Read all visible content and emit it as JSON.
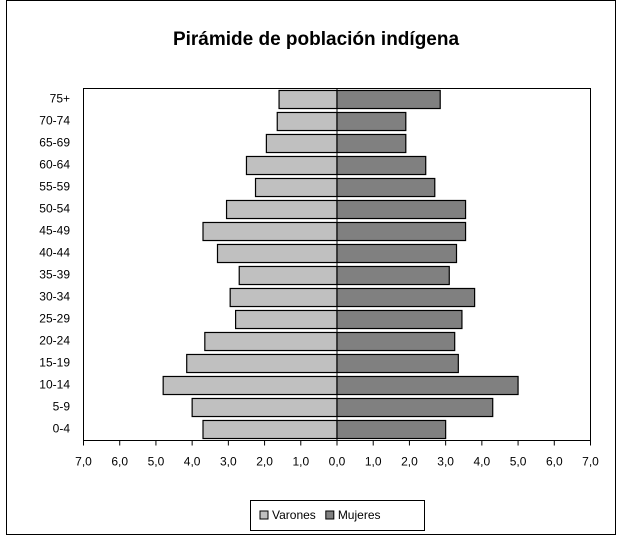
{
  "chart_data": {
    "type": "pyramid",
    "title": "Pirámide de población indígena",
    "categories": [
      "0-4",
      "5-9",
      "10-14",
      "15-19",
      "20-24",
      "25-29",
      "30-34",
      "35-39",
      "40-44",
      "45-49",
      "50-54",
      "55-59",
      "60-64",
      "65-69",
      "70-74",
      "75+"
    ],
    "series": [
      {
        "name": "Varones",
        "color": "#c0c0c0",
        "values": [
          -3.7,
          -4.0,
          -4.8,
          -4.15,
          -3.65,
          -2.8,
          -2.95,
          -2.7,
          -3.3,
          -3.7,
          -3.05,
          -2.25,
          -2.5,
          -1.95,
          -1.65,
          -1.6
        ]
      },
      {
        "name": "Mujeres",
        "color": "#808080",
        "values": [
          3.0,
          4.3,
          5.0,
          3.35,
          3.25,
          3.45,
          3.8,
          3.1,
          3.3,
          3.55,
          3.55,
          2.7,
          2.45,
          1.9,
          1.9,
          2.85
        ]
      }
    ],
    "xlim": [
      -7,
      7
    ],
    "xticks": [
      {
        "value": -7,
        "label": "7,0"
      },
      {
        "value": -6,
        "label": "6,0"
      },
      {
        "value": -5,
        "label": "5,0"
      },
      {
        "value": -4,
        "label": "4,0"
      },
      {
        "value": -3,
        "label": "3,0"
      },
      {
        "value": -2,
        "label": "2,0"
      },
      {
        "value": -1,
        "label": "1,0"
      },
      {
        "value": 0,
        "label": "0,0"
      },
      {
        "value": 1,
        "label": "1,0"
      },
      {
        "value": 2,
        "label": "2,0"
      },
      {
        "value": 3,
        "label": "3,0"
      },
      {
        "value": 4,
        "label": "4,0"
      },
      {
        "value": 5,
        "label": "5,0"
      },
      {
        "value": 6,
        "label": "6,0"
      },
      {
        "value": 7,
        "label": "7,0"
      }
    ],
    "negative_tick_color": "#e00000",
    "legend": "bottom"
  }
}
